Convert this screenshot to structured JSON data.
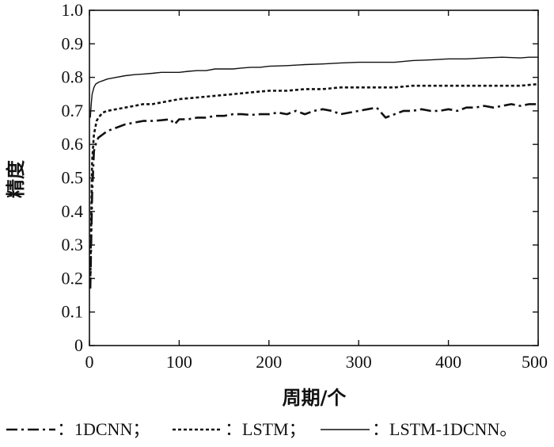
{
  "chart_data": {
    "type": "line",
    "title": "",
    "xlabel": "周期/个",
    "ylabel": "精度",
    "xlim": [
      0,
      500
    ],
    "ylim": [
      0,
      1.0
    ],
    "x_ticks": [
      "0",
      "100",
      "200",
      "300",
      "400",
      "500"
    ],
    "y_ticks": [
      "0",
      "0.1",
      "0.2",
      "0.3",
      "0.4",
      "0.5",
      "0.6",
      "0.7",
      "0.8",
      "0.9",
      "1.0"
    ],
    "grid": false,
    "legend": {
      "placement": "bottom",
      "entries": [
        {
          "style": "dash-dot",
          "text": "：1DCNN；"
        },
        {
          "style": "dotted",
          "text": "：LSTM；"
        },
        {
          "style": "solid",
          "text": "：LSTM-1DCNN。"
        }
      ]
    },
    "series": [
      {
        "name": "1DCNN",
        "style": "dash-dot",
        "color": "#111111",
        "x": [
          1,
          3,
          5,
          8,
          10,
          15,
          20,
          30,
          40,
          50,
          60,
          70,
          80,
          90,
          95,
          100,
          110,
          120,
          130,
          140,
          150,
          160,
          170,
          180,
          190,
          200,
          210,
          220,
          230,
          240,
          250,
          260,
          270,
          280,
          290,
          300,
          310,
          320,
          330,
          340,
          350,
          360,
          370,
          380,
          390,
          400,
          410,
          420,
          430,
          440,
          450,
          460,
          470,
          480,
          490,
          500
        ],
        "y": [
          0.17,
          0.45,
          0.58,
          0.61,
          0.62,
          0.63,
          0.64,
          0.65,
          0.66,
          0.665,
          0.67,
          0.67,
          0.672,
          0.675,
          0.66,
          0.675,
          0.675,
          0.68,
          0.68,
          0.685,
          0.685,
          0.69,
          0.69,
          0.688,
          0.69,
          0.69,
          0.695,
          0.69,
          0.7,
          0.69,
          0.7,
          0.705,
          0.7,
          0.69,
          0.695,
          0.7,
          0.705,
          0.71,
          0.68,
          0.69,
          0.7,
          0.7,
          0.705,
          0.7,
          0.7,
          0.705,
          0.7,
          0.71,
          0.71,
          0.715,
          0.71,
          0.715,
          0.72,
          0.715,
          0.72,
          0.72
        ]
      },
      {
        "name": "LSTM",
        "style": "dotted",
        "color": "#111111",
        "x": [
          1,
          3,
          5,
          8,
          10,
          15,
          20,
          30,
          40,
          50,
          60,
          70,
          80,
          90,
          100,
          120,
          140,
          160,
          180,
          200,
          220,
          240,
          260,
          280,
          300,
          320,
          340,
          360,
          380,
          400,
          420,
          440,
          460,
          480,
          500
        ],
        "y": [
          0.19,
          0.55,
          0.63,
          0.67,
          0.68,
          0.695,
          0.7,
          0.705,
          0.71,
          0.715,
          0.72,
          0.72,
          0.725,
          0.73,
          0.735,
          0.74,
          0.745,
          0.75,
          0.755,
          0.76,
          0.76,
          0.765,
          0.765,
          0.77,
          0.77,
          0.77,
          0.77,
          0.775,
          0.775,
          0.775,
          0.775,
          0.775,
          0.775,
          0.775,
          0.78
        ]
      },
      {
        "name": "LSTM-1DCNN",
        "style": "solid",
        "color": "#111111",
        "x": [
          1,
          2,
          3,
          5,
          7,
          10,
          15,
          20,
          30,
          40,
          50,
          60,
          70,
          80,
          90,
          100,
          110,
          120,
          130,
          140,
          150,
          160,
          170,
          180,
          190,
          200,
          220,
          240,
          260,
          280,
          300,
          320,
          340,
          360,
          380,
          400,
          420,
          440,
          460,
          480,
          490,
          500
        ],
        "y": [
          0.68,
          0.72,
          0.75,
          0.77,
          0.78,
          0.785,
          0.79,
          0.795,
          0.8,
          0.805,
          0.808,
          0.81,
          0.812,
          0.815,
          0.815,
          0.815,
          0.818,
          0.82,
          0.82,
          0.825,
          0.825,
          0.825,
          0.828,
          0.83,
          0.83,
          0.833,
          0.835,
          0.838,
          0.84,
          0.843,
          0.845,
          0.845,
          0.845,
          0.85,
          0.852,
          0.855,
          0.855,
          0.858,
          0.86,
          0.858,
          0.86,
          0.86
        ]
      }
    ]
  }
}
